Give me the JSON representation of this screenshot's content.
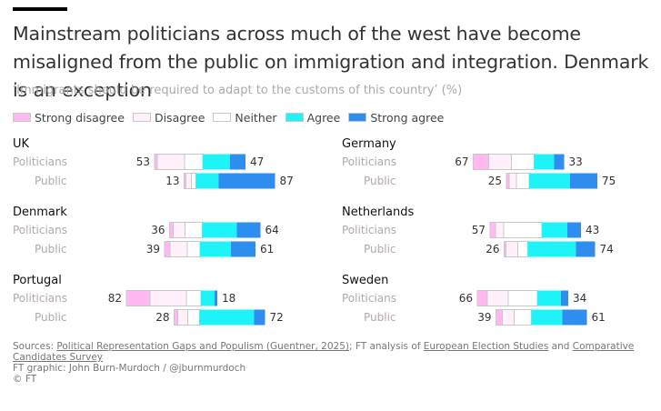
{
  "title": "Mainstream politicians across much of the west have become misaligned from the public on immigration and integration. Denmark is an exception",
  "subtitle": "‘Immigrants should be required to adapt to the customs of this country’ (%)",
  "legend": [
    {
      "label": "Strong disagree",
      "color": "#ffb8f0"
    },
    {
      "label": "Disagree",
      "color": "#fff0fb"
    },
    {
      "label": "Neither",
      "color": "#ffffff"
    },
    {
      "label": "Agree",
      "color": "#1ef4f7"
    },
    {
      "label": "Strong agree",
      "color": "#2e8ef0"
    }
  ],
  "footer": {
    "sources_prefix": "Sources: ",
    "link1": "Political Representation Gaps and Populism (Guentner, 2025)",
    "mid": "; FT analysis of ",
    "link2": "European Election Studies",
    "and": " and ",
    "link3": "Comparative Candidates Survey",
    "graphic": "FT graphic: John Burn-Murdoch / @jburnmurdoch",
    "copyright": "© FT"
  },
  "chart_data": {
    "type": "bar",
    "categories": [
      "Strong disagree",
      "Disagree",
      "Neither",
      "Agree",
      "Strong agree"
    ],
    "panels": [
      {
        "country": "UK",
        "rows": [
          {
            "group": "Politicians",
            "disagree_total": 53,
            "agree_total": 47,
            "values": [
              3,
              30,
              20,
              30,
              17
            ]
          },
          {
            "group": "Public",
            "disagree_total": 13,
            "agree_total": 87,
            "values": [
              2,
              6,
              5,
              25,
              62
            ]
          }
        ]
      },
      {
        "country": "Germany",
        "rows": [
          {
            "group": "Politicians",
            "disagree_total": 67,
            "agree_total": 33,
            "values": [
              17,
              25,
              25,
              22,
              11
            ]
          },
          {
            "group": "Public",
            "disagree_total": 25,
            "agree_total": 75,
            "values": [
              3,
              8,
              14,
              45,
              30
            ]
          }
        ]
      },
      {
        "country": "Denmark",
        "rows": [
          {
            "group": "Politicians",
            "disagree_total": 36,
            "agree_total": 64,
            "values": [
              4,
              13,
              19,
              38,
              26
            ]
          },
          {
            "group": "Public",
            "disagree_total": 39,
            "agree_total": 61,
            "values": [
              6,
              19,
              14,
              34,
              27
            ]
          }
        ]
      },
      {
        "country": "Netherlands",
        "rows": [
          {
            "group": "Politicians",
            "disagree_total": 57,
            "agree_total": 43,
            "values": [
              6,
              9,
              42,
              28,
              15
            ]
          },
          {
            "group": "Public",
            "disagree_total": 26,
            "agree_total": 74,
            "values": [
              2,
              13,
              11,
              53,
              21
            ]
          }
        ]
      },
      {
        "country": "Portugal",
        "rows": [
          {
            "group": "Politicians",
            "disagree_total": 82,
            "agree_total": 18,
            "values": [
              26,
              40,
              16,
              15,
              3
            ]
          },
          {
            "group": "Public",
            "disagree_total": 28,
            "agree_total": 72,
            "values": [
              4,
              11,
              13,
              60,
              12
            ]
          }
        ]
      },
      {
        "country": "Sweden",
        "rows": [
          {
            "group": "Politicians",
            "disagree_total": 66,
            "agree_total": 34,
            "values": [
              11,
              23,
              32,
              26,
              8
            ]
          },
          {
            "group": "Public",
            "disagree_total": 39,
            "agree_total": 61,
            "values": [
              7,
              13,
              19,
              34,
              27
            ]
          }
        ]
      }
    ]
  }
}
